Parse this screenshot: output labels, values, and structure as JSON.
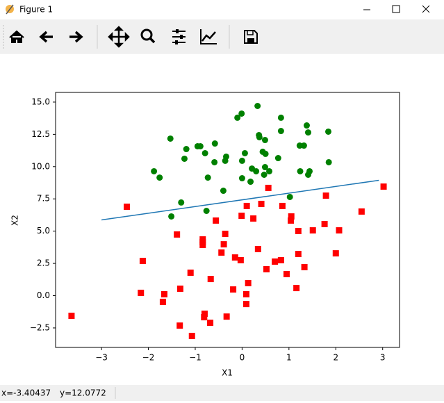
{
  "window": {
    "title": "Figure 1"
  },
  "status": {
    "x": "x=-3.40437",
    "y": "y=12.0772"
  },
  "chart_data": {
    "type": "scatter",
    "xlabel": "X1",
    "ylabel": "X2",
    "xlim": [
      -3.98,
      3.36
    ],
    "ylim": [
      -4.01,
      15.75
    ],
    "xticks": [
      {
        "value": -3,
        "label": "−3"
      },
      {
        "value": -2,
        "label": "−2"
      },
      {
        "value": -1,
        "label": "−1"
      },
      0,
      1,
      2,
      3
    ],
    "yticks": [
      {
        "value": -2.5,
        "label": "−2.5"
      },
      {
        "value": 0,
        "label": "0.0"
      },
      {
        "value": 2.5,
        "label": "2.5"
      },
      {
        "value": 5,
        "label": "5.0"
      },
      {
        "value": 7.5,
        "label": "7.5"
      },
      {
        "value": 10,
        "label": "10.0"
      },
      {
        "value": 12.5,
        "label": "12.5"
      },
      {
        "value": 15,
        "label": "15.0"
      }
    ],
    "series": [
      {
        "marker": "circle",
        "color": "green",
        "x": [
          -1.53,
          -1.19,
          -0.95,
          -0.89,
          -0.58,
          -1.23,
          -0.79,
          -0.59,
          -0.36,
          -0.34,
          -1.88,
          -1.76,
          -0.73,
          -0.1,
          -0.01,
          0.33,
          0.36,
          0.37,
          0.49,
          0.83,
          0.44,
          0.5,
          0.06,
          0.0,
          0.21,
          0.3,
          0.49,
          0.58,
          0.47,
          0.77,
          0.83,
          1.38,
          1.41,
          1.23,
          1.32,
          1.84,
          1.24,
          1.41,
          1.44,
          1.85,
          1.02,
          -0.4,
          -1.3,
          -0.76,
          -1.51,
          0.18,
          0.0
        ],
        "y": [
          12.17,
          11.36,
          11.58,
          11.58,
          11.79,
          10.61,
          11.04,
          10.34,
          10.45,
          10.77,
          9.64,
          9.15,
          9.15,
          13.79,
          14.11,
          14.7,
          12.44,
          12.28,
          12.06,
          12.76,
          11.15,
          10.99,
          11.04,
          10.45,
          9.85,
          9.64,
          9.96,
          9.64,
          9.37,
          10.66,
          13.79,
          13.19,
          12.65,
          11.63,
          11.63,
          12.71,
          9.64,
          9.37,
          9.64,
          10.34,
          7.65,
          8.13,
          7.22,
          6.57,
          6.14,
          8.83,
          9.1
        ]
      },
      {
        "marker": "square",
        "color": "red",
        "x": [
          -3.64,
          -2.46,
          -2.12,
          -2.16,
          -1.66,
          -1.69,
          -1.33,
          -1.32,
          -1.39,
          -1.1,
          -0.84,
          -0.84,
          -0.84,
          -1.07,
          -0.81,
          -0.8,
          -0.68,
          -0.67,
          -0.56,
          -0.44,
          -0.39,
          -0.36,
          -0.33,
          -0.19,
          -0.15,
          -0.03,
          -0.01,
          0.1,
          0.09,
          0.09,
          0.13,
          0.24,
          0.34,
          0.41,
          0.52,
          0.56,
          0.7,
          0.83,
          0.95,
          0.86,
          1.04,
          1.05,
          1.16,
          1.2,
          1.2,
          1.33,
          1.51,
          1.76,
          1.79,
          2.07,
          2.0,
          2.55,
          3.02
        ],
        "y": [
          -1.56,
          6.89,
          2.69,
          0.22,
          0.11,
          -0.48,
          -2.32,
          0.54,
          4.74,
          1.78,
          4.36,
          4.15,
          3.93,
          -3.12,
          -1.67,
          -1.4,
          -2.1,
          1.29,
          5.82,
          3.34,
          3.98,
          4.79,
          -1.62,
          0.48,
          2.96,
          2.75,
          6.19,
          6.95,
          0.11,
          -0.65,
          0.97,
          5.98,
          3.61,
          7.11,
          2.05,
          8.35,
          2.64,
          2.75,
          1.67,
          6.95,
          5.82,
          6.14,
          0.59,
          5.01,
          3.23,
          2.21,
          5.06,
          5.55,
          7.75,
          5.06,
          3.28,
          6.52,
          8.45
        ]
      },
      {
        "type": "line",
        "color": "#1f77b4",
        "x": [
          -3,
          2.92
        ],
        "y": [
          5.87,
          8.94
        ]
      }
    ]
  }
}
